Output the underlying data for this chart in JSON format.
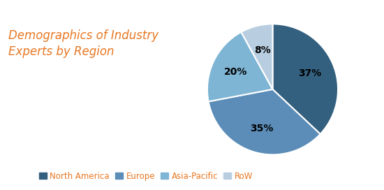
{
  "title": "Demographics of Industry\nExperts by Region",
  "title_color": "#E87722",
  "title_fontsize": 12,
  "slices": [
    37,
    35,
    20,
    8
  ],
  "labels": [
    "North America",
    "Europe",
    "Asia-Pacific",
    "RoW"
  ],
  "pct_labels": [
    "37%",
    "35%",
    "20%",
    "8%"
  ],
  "colors": [
    "#34607F",
    "#5B8DB8",
    "#7EB4D4",
    "#B8CEE0"
  ],
  "startangle": 90,
  "background_color": "#FFFFFF",
  "legend_fontsize": 8.5,
  "legend_color": "#E87722",
  "pct_fontsize": 10
}
